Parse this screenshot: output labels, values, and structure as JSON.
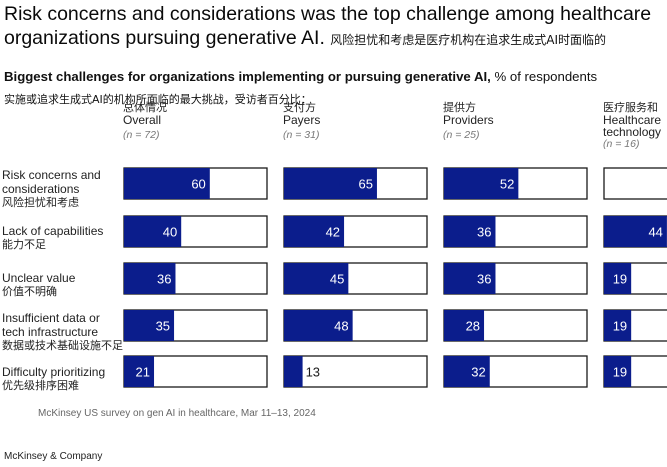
{
  "title_en_line1": "Risk concerns and considerations was the top challenge among healthcare",
  "title_en_line2": "organizations pursuing generative AI.",
  "title_cn": "风险担忧和考虑是医疗机构在追求生成式AI时面临的",
  "subtitle": "Biggest challenges for organizations implementing or pursuing generative AI,",
  "subtitle_unit": "% of respondents",
  "subtitle_cn": "实施或追求生成式AI的机构所面临的最大挑战，受访者百分比：",
  "source": "McKinsey US survey on gen AI in healthcare, Mar 11–13, 2024",
  "brand": "McKinsey & Company",
  "colors": {
    "bar": "#0b1d8c",
    "border": "#1a1a1a",
    "label_on_bar": "#ffffff",
    "label_off_bar": "#1a1a1a"
  },
  "columns": [
    {
      "cn": "总体情况",
      "en": "Overall",
      "n": "(n = 72)"
    },
    {
      "cn": "支付方",
      "en": "Payers",
      "n": "(n = 31)"
    },
    {
      "cn": "提供方",
      "en": "Providers",
      "n": "(n = 25)"
    },
    {
      "cn": "医疗服务和",
      "en": "Healthcare",
      "n": "(n = 16)",
      "en2": "technology"
    }
  ],
  "rows": [
    {
      "en": [
        "Risk concerns and",
        "considerations"
      ],
      "cn": "风险担忧和考虑"
    },
    {
      "en": [
        "Lack of capabilities"
      ],
      "cn": "能力不足"
    },
    {
      "en": [
        "Unclear value"
      ],
      "cn": "价值不明确"
    },
    {
      "en": [
        "Insufficient data or",
        "tech infrastructure"
      ],
      "cn": "数据或技术基础设施不足"
    },
    {
      "en": [
        "Difficulty prioritizing"
      ],
      "cn": "优先级排序困难"
    }
  ],
  "chart_data": {
    "type": "bar",
    "orientation": "horizontal",
    "unit": "% of respondents",
    "xlim": [
      0,
      100
    ],
    "categories": [
      "Risk concerns and considerations",
      "Lack of capabilities",
      "Unclear value",
      "Insufficient data or tech infrastructure",
      "Difficulty prioritizing"
    ],
    "series": [
      {
        "name": "Overall (n = 72)",
        "values": [
          60,
          40,
          36,
          35,
          21
        ]
      },
      {
        "name": "Payers (n = 31)",
        "values": [
          65,
          42,
          45,
          48,
          13
        ]
      },
      {
        "name": "Providers (n = 25)",
        "values": [
          52,
          36,
          36,
          28,
          32
        ]
      },
      {
        "name": "Healthcare technology (n = 16)",
        "values": [
          null,
          44,
          19,
          19,
          19
        ]
      }
    ]
  }
}
